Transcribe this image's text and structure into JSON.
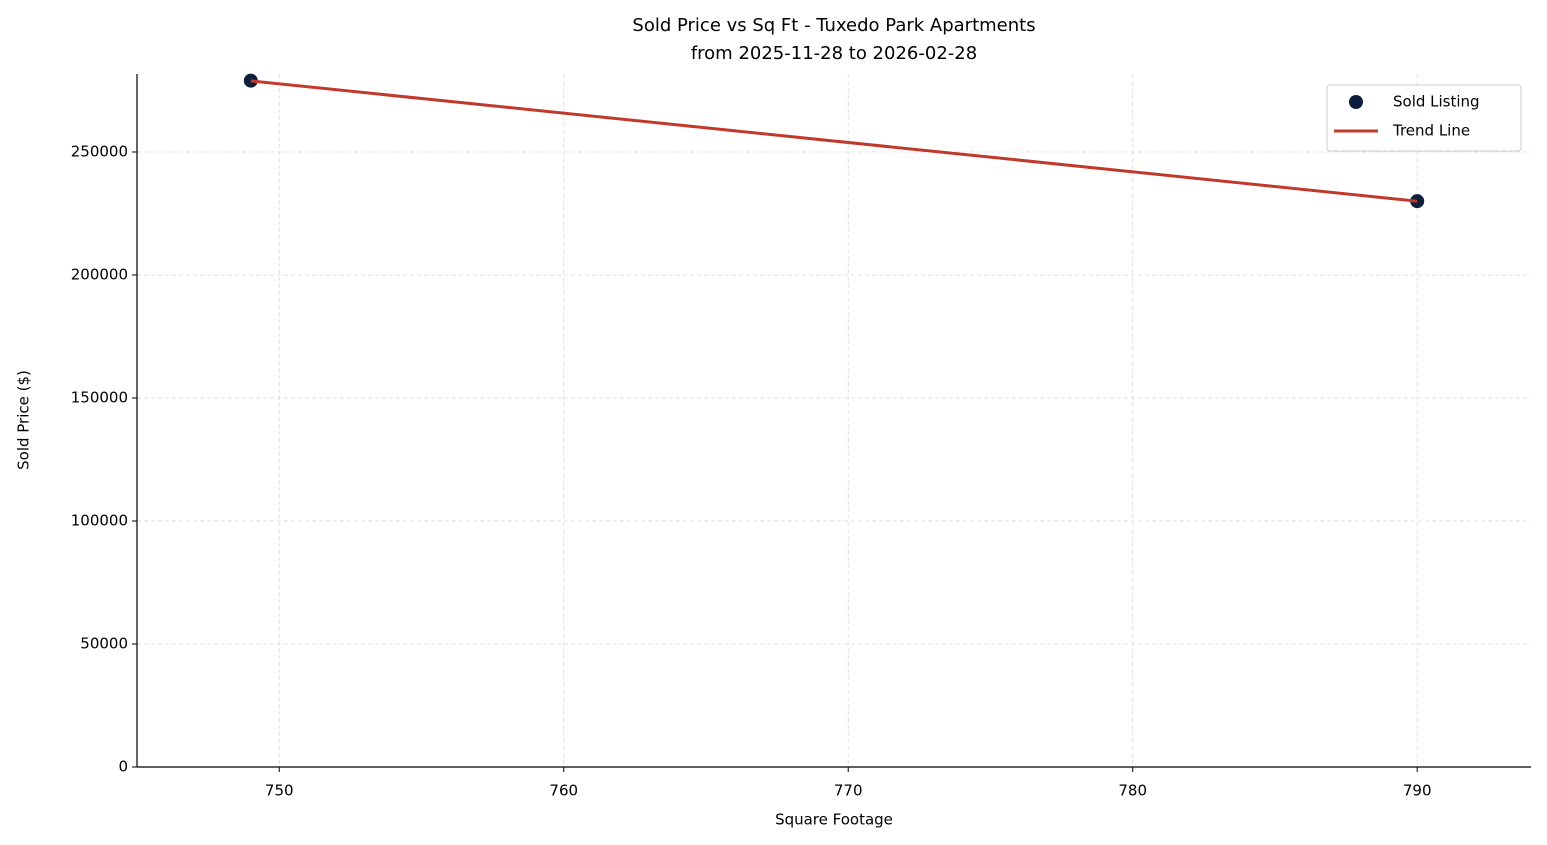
{
  "chart_data": {
    "type": "scatter",
    "title": "Sold Price vs Sq Ft - Tuxedo Park Apartments",
    "subtitle": "from 2025-11-28 to 2026-02-28",
    "x_label": "Square Footage",
    "y_label": "Sold Price ($)",
    "series": [
      {
        "name": "Sold Listing",
        "color": "#0d1f3c",
        "style": "marker",
        "x": [
          749,
          790
        ],
        "values": [
          279000,
          230000
        ]
      },
      {
        "name": "Trend Line",
        "color": "#c0392b",
        "style": "line",
        "x": [
          749,
          790
        ],
        "values": [
          278900,
          230000
        ]
      }
    ],
    "xlim": [
      745,
      794
    ],
    "xticks": [
      750,
      760,
      770,
      780,
      790
    ],
    "ylim": [
      0,
      281700
    ],
    "yticks": [
      0,
      50000,
      100000,
      150000,
      200000,
      250000
    ],
    "grid": true,
    "legend": "upper right"
  }
}
